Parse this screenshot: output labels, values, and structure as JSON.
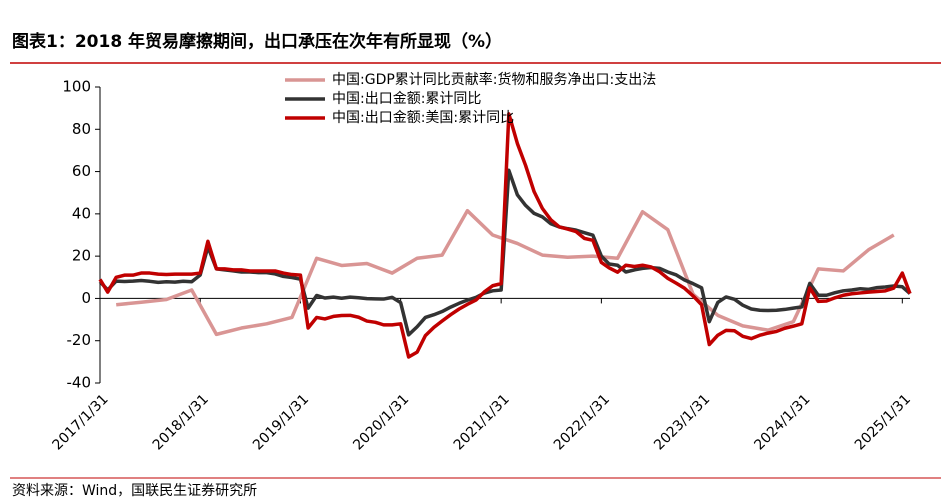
{
  "chart_data": {
    "type": "line",
    "title": "图表1：2018 年贸易摩擦期间，出口承压在次年有所显现（%）",
    "source": "资料来源：Wind，国联民生证券研究所",
    "x": [
      "2017-01-31",
      "2017-02-28",
      "2017-03-31",
      "2017-04-30",
      "2017-05-31",
      "2017-06-30",
      "2017-07-31",
      "2017-08-31",
      "2017-09-30",
      "2017-10-31",
      "2017-11-30",
      "2017-12-31",
      "2018-01-31",
      "2018-02-28",
      "2018-03-31",
      "2018-04-30",
      "2018-05-31",
      "2018-06-30",
      "2018-07-31",
      "2018-08-31",
      "2018-09-30",
      "2018-10-31",
      "2018-11-30",
      "2018-12-31",
      "2019-01-31",
      "2019-02-28",
      "2019-03-31",
      "2019-04-30",
      "2019-05-31",
      "2019-06-30",
      "2019-07-31",
      "2019-08-31",
      "2019-09-30",
      "2019-10-31",
      "2019-11-30",
      "2019-12-31",
      "2020-01-31",
      "2020-02-29",
      "2020-03-31",
      "2020-04-30",
      "2020-05-31",
      "2020-06-30",
      "2020-07-31",
      "2020-08-31",
      "2020-09-30",
      "2020-10-31",
      "2020-11-30",
      "2020-12-31",
      "2021-01-31",
      "2021-02-28",
      "2021-03-31",
      "2021-04-30",
      "2021-05-31",
      "2021-06-30",
      "2021-07-31",
      "2021-08-31",
      "2021-09-30",
      "2021-10-31",
      "2021-11-30",
      "2021-12-31",
      "2022-01-31",
      "2022-02-28",
      "2022-03-31",
      "2022-04-30",
      "2022-05-31",
      "2022-06-30",
      "2022-07-31",
      "2022-08-31",
      "2022-09-30",
      "2022-10-31",
      "2022-11-30",
      "2022-12-31",
      "2023-01-31",
      "2023-02-28",
      "2023-03-31",
      "2023-04-30",
      "2023-05-31",
      "2023-06-30",
      "2023-07-31",
      "2023-08-31",
      "2023-09-30",
      "2023-10-31",
      "2023-11-30",
      "2023-12-31",
      "2024-01-31",
      "2024-02-29",
      "2024-03-31",
      "2024-04-30",
      "2024-05-31",
      "2024-06-30",
      "2024-07-31",
      "2024-08-31",
      "2024-09-30",
      "2024-10-31",
      "2024-11-30",
      "2024-12-31",
      "2025-01-31",
      "2025-02-28"
    ],
    "series": [
      {
        "name": "中国:GDP累计同比贡献率:货物和服务净出口:支出法",
        "color": "#d99594",
        "x": [
          "2017-03-31",
          "2017-06-30",
          "2017-09-30",
          "2017-12-31",
          "2018-03-31",
          "2018-06-30",
          "2018-09-30",
          "2018-12-31",
          "2019-03-31",
          "2019-06-30",
          "2019-09-30",
          "2019-12-31",
          "2020-03-31",
          "2020-06-30",
          "2020-09-30",
          "2020-12-31",
          "2021-03-31",
          "2021-06-30",
          "2021-09-30",
          "2021-12-31",
          "2022-03-31",
          "2022-06-30",
          "2022-09-30",
          "2022-12-31",
          "2023-03-31",
          "2023-06-30",
          "2023-09-30",
          "2023-12-31",
          "2024-03-31",
          "2024-06-30",
          "2024-09-30",
          "2024-12-31"
        ],
        "values": [
          -3,
          -1.8,
          -0.5,
          4,
          -17,
          -14,
          -12,
          -9,
          19,
          15.6,
          16.5,
          12,
          19,
          20.5,
          41.5,
          30,
          26,
          20.5,
          19.5,
          20,
          19,
          41,
          32.5,
          2,
          -8,
          -13,
          -15,
          -11,
          14,
          13,
          23,
          30
        ]
      },
      {
        "name": "中国:出口金额:累计同比",
        "color": "#333333",
        "values": [
          7.9,
          4.0,
          8.2,
          8.0,
          8.2,
          8.5,
          8.1,
          7.6,
          7.9,
          7.7,
          8.1,
          7.9,
          11.1,
          24.4,
          14,
          13.5,
          13,
          12.5,
          12.5,
          12.2,
          12.2,
          11.6,
          10.4,
          9.9,
          9.1,
          -4.6,
          1.4,
          0.2,
          0.6,
          0.1,
          0.6,
          0.3,
          -0.1,
          -0.2,
          -0.3,
          0.5,
          -2,
          -17.2,
          -13.4,
          -9.0,
          -7.7,
          -6.2,
          -4.1,
          -2.3,
          -0.8,
          0.5,
          2.5,
          3.6,
          4,
          60.6,
          49,
          44,
          40.2,
          38.6,
          35.3,
          33.8,
          33,
          32.3,
          31.1,
          29.9,
          20,
          16.3,
          15.7,
          12.5,
          13.5,
          14.2,
          14.6,
          14.2,
          12.5,
          11.1,
          8.7,
          7.0,
          5,
          -11,
          -1.9,
          0.7,
          -0.4,
          -3.2,
          -5,
          -5.6,
          -5.7,
          -5.6,
          -5.2,
          -4.6,
          -4,
          7.1,
          1.5,
          1.5,
          2.7,
          3.6,
          4.0,
          4.6,
          4.3,
          5.1,
          5.4,
          5.9,
          5.5,
          2.3
        ]
      },
      {
        "name": "中国:出口金额:美国:累计同比",
        "color": "#c00000",
        "values": [
          9,
          3,
          10,
          11,
          11,
          12,
          12,
          11.5,
          11.3,
          11.5,
          11.5,
          11.5,
          12,
          27,
          14,
          14,
          13.5,
          13.5,
          13,
          13,
          13,
          13,
          12,
          11.3,
          11,
          -14,
          -9,
          -9.7,
          -8.5,
          -8.1,
          -8,
          -8.9,
          -10.7,
          -11.3,
          -12.5,
          -12.5,
          -12,
          -27.7,
          -25.4,
          -17.6,
          -13.7,
          -10.7,
          -7.7,
          -5,
          -2.8,
          -0.8,
          3,
          6,
          7,
          87.3,
          73.3,
          62.9,
          50.5,
          42.6,
          37.2,
          33.8,
          32.8,
          31.6,
          28.4,
          27.5,
          17,
          14.5,
          12.4,
          15.7,
          15.1,
          15.7,
          14.9,
          12.6,
          9.5,
          7.2,
          4.8,
          1.2,
          -3,
          -21.8,
          -17.4,
          -15.1,
          -15.3,
          -17.9,
          -19,
          -17.4,
          -16.4,
          -15.6,
          -14.1,
          -13.1,
          -12,
          5,
          -1.4,
          -1.2,
          0.3,
          1.5,
          2.2,
          2.6,
          3.0,
          3.3,
          3.6,
          4.9,
          12,
          2.3
        ]
      }
    ],
    "xlim": [
      "2017-01-31",
      "2025-02-28"
    ],
    "xticks": [
      {
        "value": "2017-01-31",
        "label": "2017/1/31"
      },
      {
        "value": "2018-01-31",
        "label": "2018/1/31"
      },
      {
        "value": "2019-01-31",
        "label": "2019/1/31"
      },
      {
        "value": "2020-01-31",
        "label": "2020/1/31"
      },
      {
        "value": "2021-01-31",
        "label": "2021/1/31"
      },
      {
        "value": "2022-01-31",
        "label": "2022/1/31"
      },
      {
        "value": "2023-01-31",
        "label": "2023/1/31"
      },
      {
        "value": "2024-01-31",
        "label": "2024/1/31"
      },
      {
        "value": "2025-01-31",
        "label": "2025/1/31"
      }
    ],
    "ylim": [
      -40,
      100
    ],
    "yticks": [
      -40,
      -20,
      0,
      20,
      40,
      60,
      80,
      100
    ],
    "grid": false,
    "legend": "top"
  }
}
